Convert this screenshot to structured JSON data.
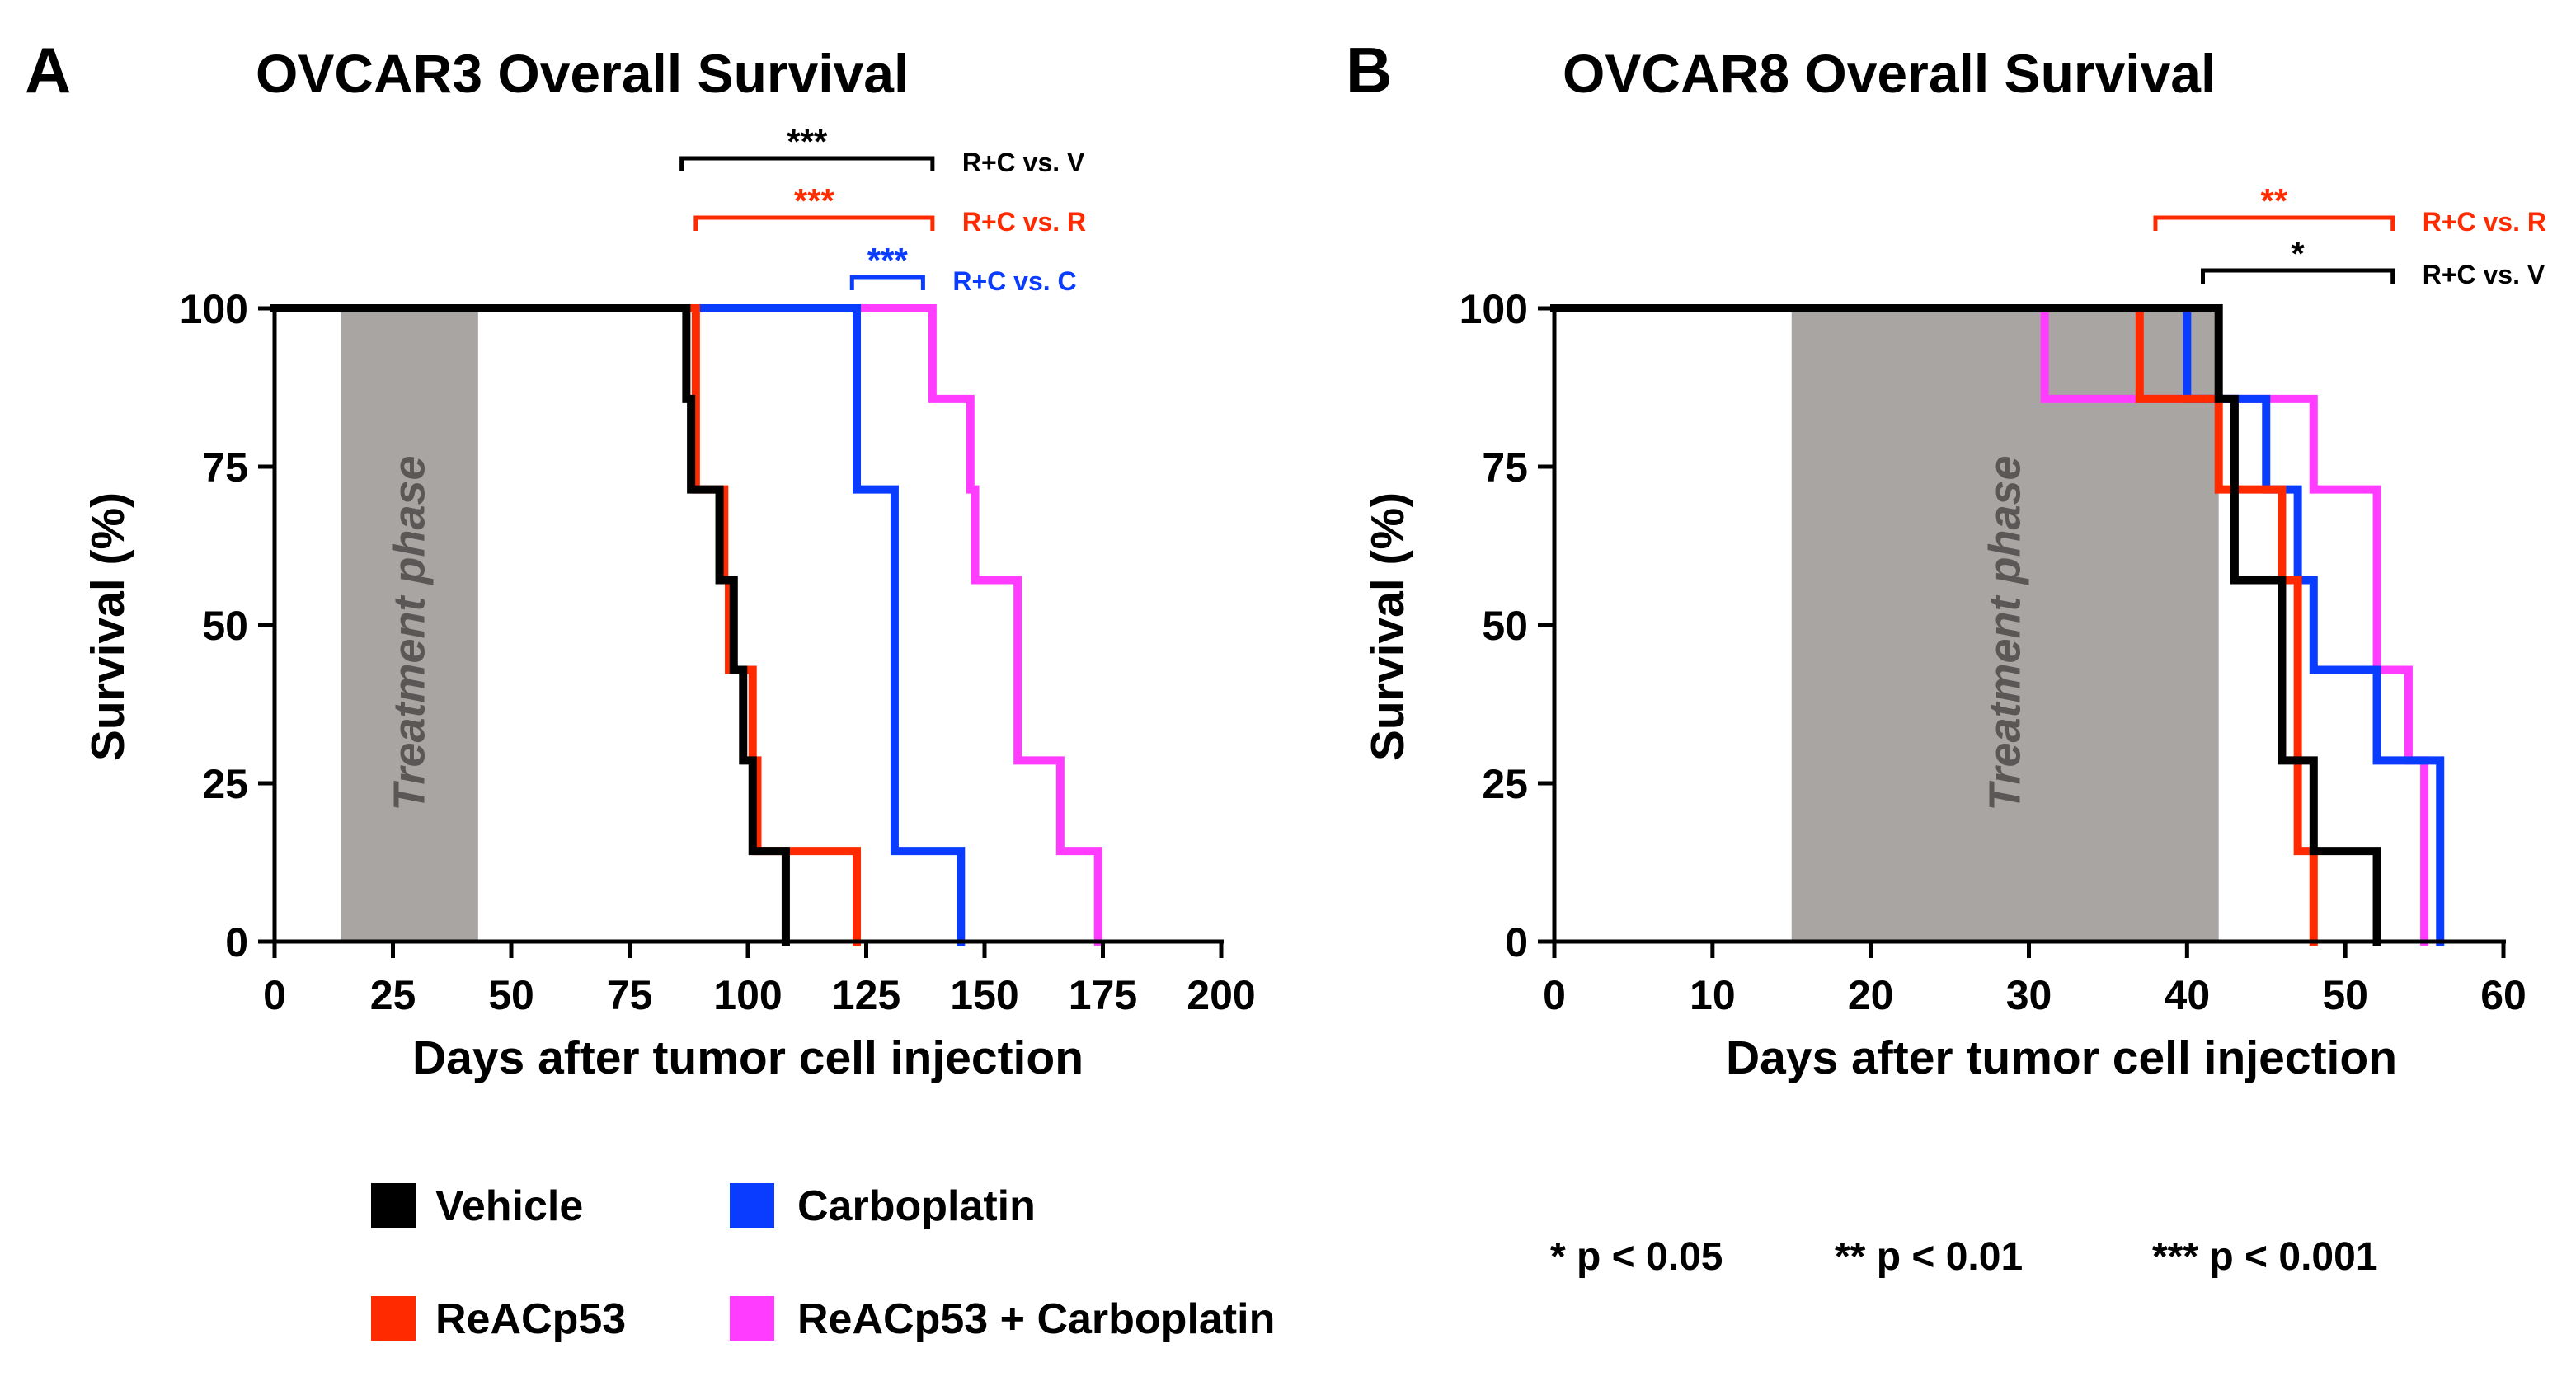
{
  "colors": {
    "vehicle": "#000000",
    "reacp53": "#ff2a00",
    "carboplatin": "#0a3cff",
    "combo": "#ff3cff",
    "treatment": "#a8a5a3"
  },
  "legend": {
    "items": [
      {
        "key": "vehicle",
        "label": "Vehicle"
      },
      {
        "key": "carboplatin",
        "label": "Carboplatin"
      },
      {
        "key": "reacp53",
        "label": "ReACp53"
      },
      {
        "key": "combo",
        "label": "ReACp53 + Carboplatin"
      }
    ]
  },
  "pvalues": [
    "* p < 0.05",
    "** p < 0.01",
    "*** p < 0.001"
  ],
  "chart_data": [
    {
      "type": "line",
      "panel": "A",
      "title": "OVCAR3 Overall Survival",
      "xlabel": "Days after tumor cell injection",
      "ylabel": "Survival (%)",
      "xlim": [
        0,
        200
      ],
      "ylim": [
        0,
        100
      ],
      "xticks": [
        0,
        25,
        50,
        75,
        100,
        125,
        150,
        175,
        200
      ],
      "yticks": [
        0,
        25,
        50,
        75,
        100
      ],
      "treatment": {
        "label": "Treatment phase",
        "start": 14,
        "end": 43
      },
      "series": [
        {
          "name": "ReACp53 + Carboplatin",
          "key": "combo",
          "x": [
            0,
            139,
            147,
            148,
            157,
            166,
            174
          ],
          "y": [
            100,
            85.7,
            71.4,
            57.1,
            28.6,
            14.3,
            0
          ]
        },
        {
          "name": "Carboplatin",
          "key": "carboplatin",
          "x": [
            0,
            123,
            131,
            145
          ],
          "y": [
            100,
            71.4,
            14.3,
            0
          ]
        },
        {
          "name": "ReACp53",
          "key": "reacp53",
          "x": [
            0,
            89,
            95,
            96,
            101,
            102,
            123
          ],
          "y": [
            100,
            71.4,
            57.1,
            42.9,
            28.6,
            14.3,
            0
          ]
        },
        {
          "name": "Vehicle",
          "key": "vehicle",
          "x": [
            0,
            87,
            88,
            94,
            97,
            99,
            101,
            108
          ],
          "y": [
            100,
            85.7,
            71.4,
            57.1,
            42.9,
            28.6,
            14.3,
            0
          ]
        }
      ],
      "comparisons": [
        {
          "stars": "***",
          "label": "R+C vs. V",
          "key": "vehicle",
          "x1": 86,
          "x2": 139,
          "level": 0
        },
        {
          "stars": "***",
          "label": "R+C vs. R",
          "key": "reacp53",
          "x1": 89,
          "x2": 139,
          "level": 1
        },
        {
          "stars": "***",
          "label": "R+C vs. C",
          "key": "carboplatin",
          "x1": 122,
          "x2": 137,
          "level": 2
        }
      ]
    },
    {
      "type": "line",
      "panel": "B",
      "title": "OVCAR8 Overall Survival",
      "xlabel": "Days after tumor cell injection",
      "ylabel": "Survival (%)",
      "xlim": [
        0,
        60
      ],
      "ylim": [
        0,
        100
      ],
      "xticks": [
        0,
        10,
        20,
        30,
        40,
        50,
        60
      ],
      "yticks": [
        0,
        25,
        50,
        75,
        100
      ],
      "treatment": {
        "label": "Treatment phase",
        "start": 15,
        "end": 42
      },
      "series": [
        {
          "name": "ReACp53 + Carboplatin",
          "key": "combo",
          "x": [
            0,
            31,
            48,
            52,
            54,
            55
          ],
          "y": [
            100,
            85.7,
            71.4,
            42.9,
            28.6,
            0
          ]
        },
        {
          "name": "Carboplatin",
          "key": "carboplatin",
          "x": [
            0,
            40,
            45,
            47,
            48,
            52,
            56
          ],
          "y": [
            100,
            85.7,
            71.4,
            57.1,
            42.9,
            28.6,
            0
          ]
        },
        {
          "name": "ReACp53",
          "key": "reacp53",
          "x": [
            0,
            37,
            42,
            46,
            47,
            48
          ],
          "y": [
            100,
            85.7,
            71.4,
            57.1,
            14.3,
            0
          ]
        },
        {
          "name": "Vehicle",
          "key": "vehicle",
          "x": [
            0,
            42,
            43,
            46,
            48,
            52
          ],
          "y": [
            100,
            85.7,
            57.1,
            28.6,
            14.3,
            0
          ]
        }
      ],
      "comparisons": [
        {
          "stars": "**",
          "label": "R+C vs. R",
          "key": "reacp53",
          "x1": 38,
          "x2": 53,
          "level": 0
        },
        {
          "stars": "*",
          "label": "R+C vs. V",
          "key": "vehicle",
          "x1": 41,
          "x2": 53,
          "level": 1
        }
      ]
    }
  ]
}
